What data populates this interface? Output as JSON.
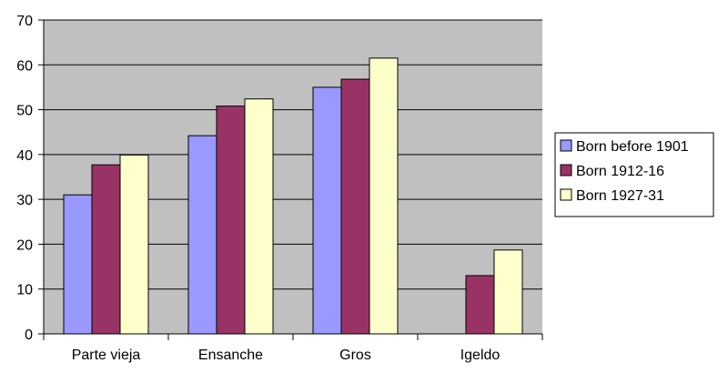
{
  "chart_data": {
    "type": "bar",
    "title": "",
    "xlabel": "",
    "ylabel": "",
    "categories": [
      "Parte vieja",
      "Ensanche",
      "Gros",
      "Igeldo"
    ],
    "ylim": [
      0,
      70
    ],
    "yticks": [
      0,
      10,
      20,
      30,
      40,
      50,
      60,
      70
    ],
    "grid": "horizontal",
    "legend_position": "right",
    "plot_background": "#c0c0c0",
    "series": [
      {
        "name": "Born before 1901",
        "color": "#9999ff",
        "values": [
          31,
          44.2,
          55,
          null
        ]
      },
      {
        "name": "Born 1912-16",
        "color": "#993366",
        "values": [
          37.7,
          50.8,
          56.8,
          13
        ]
      },
      {
        "name": "Born 1927-31",
        "color": "#ffffcc",
        "values": [
          39.9,
          52.4,
          61.5,
          18.7
        ]
      }
    ]
  }
}
